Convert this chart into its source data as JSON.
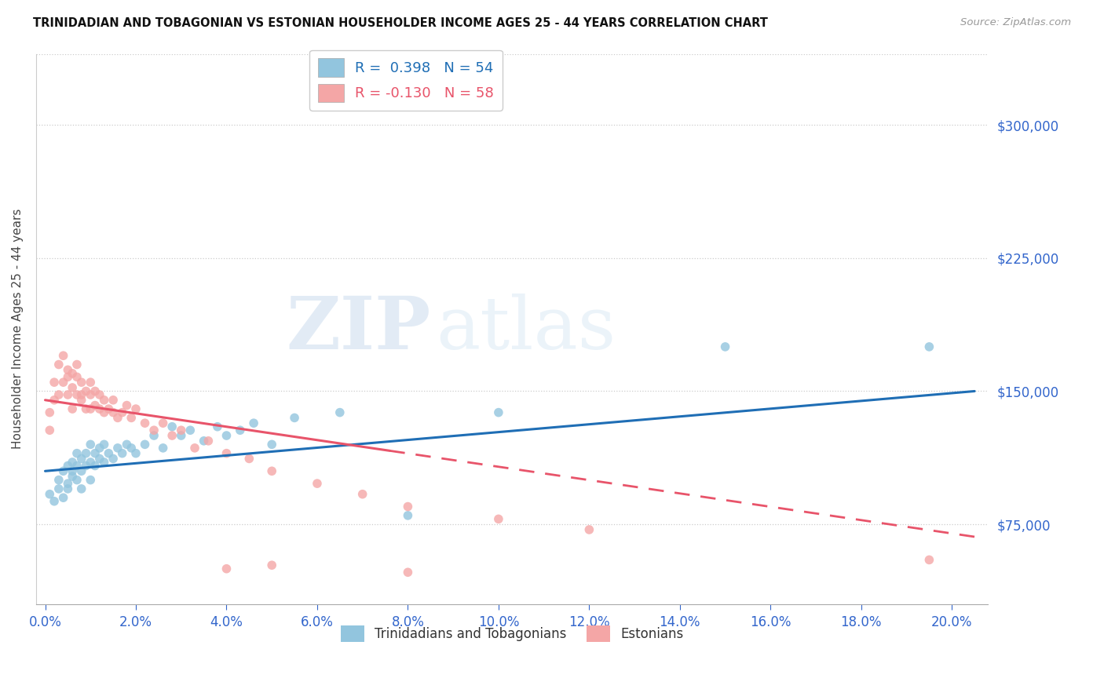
{
  "title": "TRINIDADIAN AND TOBAGONIAN VS ESTONIAN HOUSEHOLDER INCOME AGES 25 - 44 YEARS CORRELATION CHART",
  "source": "Source: ZipAtlas.com",
  "ylabel": "Householder Income Ages 25 - 44 years",
  "xlabel_ticks": [
    0.0,
    0.02,
    0.04,
    0.06,
    0.08,
    0.1,
    0.12,
    0.14,
    0.16,
    0.18,
    0.2
  ],
  "ylabel_ticks": [
    75000,
    150000,
    225000,
    300000
  ],
  "xlim": [
    -0.002,
    0.208
  ],
  "ylim": [
    30000,
    340000
  ],
  "legend_R_blue": "R =  0.398   N = 54",
  "legend_R_pink": "R = -0.130   N = 58",
  "legend_label_blue": "Trinidadians and Tobagonians",
  "legend_label_pink": "Estonians",
  "blue_color": "#92c5de",
  "pink_color": "#f4a6a6",
  "blue_line_color": "#1f6eb5",
  "pink_line_color": "#e8546a",
  "watermark_zip": "ZIP",
  "watermark_atlas": "atlas",
  "blue_scatter_x": [
    0.001,
    0.002,
    0.003,
    0.003,
    0.004,
    0.004,
    0.005,
    0.005,
    0.005,
    0.006,
    0.006,
    0.006,
    0.007,
    0.007,
    0.007,
    0.008,
    0.008,
    0.008,
    0.009,
    0.009,
    0.01,
    0.01,
    0.01,
    0.011,
    0.011,
    0.012,
    0.012,
    0.013,
    0.013,
    0.014,
    0.015,
    0.016,
    0.017,
    0.018,
    0.019,
    0.02,
    0.022,
    0.024,
    0.026,
    0.028,
    0.03,
    0.032,
    0.035,
    0.038,
    0.04,
    0.043,
    0.046,
    0.05,
    0.055,
    0.065,
    0.08,
    0.1,
    0.15,
    0.195
  ],
  "blue_scatter_y": [
    92000,
    88000,
    95000,
    100000,
    90000,
    105000,
    98000,
    108000,
    95000,
    102000,
    110000,
    105000,
    100000,
    108000,
    115000,
    105000,
    112000,
    95000,
    108000,
    115000,
    100000,
    110000,
    120000,
    108000,
    115000,
    112000,
    118000,
    110000,
    120000,
    115000,
    112000,
    118000,
    115000,
    120000,
    118000,
    115000,
    120000,
    125000,
    118000,
    130000,
    125000,
    128000,
    122000,
    130000,
    125000,
    128000,
    132000,
    120000,
    135000,
    138000,
    80000,
    138000,
    175000,
    175000
  ],
  "pink_scatter_x": [
    0.001,
    0.001,
    0.002,
    0.002,
    0.003,
    0.003,
    0.004,
    0.004,
    0.005,
    0.005,
    0.005,
    0.006,
    0.006,
    0.006,
    0.007,
    0.007,
    0.007,
    0.008,
    0.008,
    0.008,
    0.009,
    0.009,
    0.01,
    0.01,
    0.01,
    0.011,
    0.011,
    0.012,
    0.012,
    0.013,
    0.013,
    0.014,
    0.015,
    0.015,
    0.016,
    0.017,
    0.018,
    0.019,
    0.02,
    0.022,
    0.024,
    0.026,
    0.028,
    0.03,
    0.033,
    0.036,
    0.04,
    0.045,
    0.05,
    0.06,
    0.07,
    0.08,
    0.1,
    0.12,
    0.04,
    0.05,
    0.08,
    0.195
  ],
  "pink_scatter_y": [
    128000,
    138000,
    145000,
    155000,
    148000,
    165000,
    155000,
    170000,
    148000,
    162000,
    158000,
    140000,
    152000,
    160000,
    148000,
    158000,
    165000,
    145000,
    155000,
    148000,
    140000,
    150000,
    140000,
    148000,
    155000,
    142000,
    150000,
    140000,
    148000,
    138000,
    145000,
    140000,
    138000,
    145000,
    135000,
    138000,
    142000,
    135000,
    140000,
    132000,
    128000,
    132000,
    125000,
    128000,
    118000,
    122000,
    115000,
    112000,
    105000,
    98000,
    92000,
    85000,
    78000,
    72000,
    50000,
    52000,
    48000,
    55000
  ]
}
